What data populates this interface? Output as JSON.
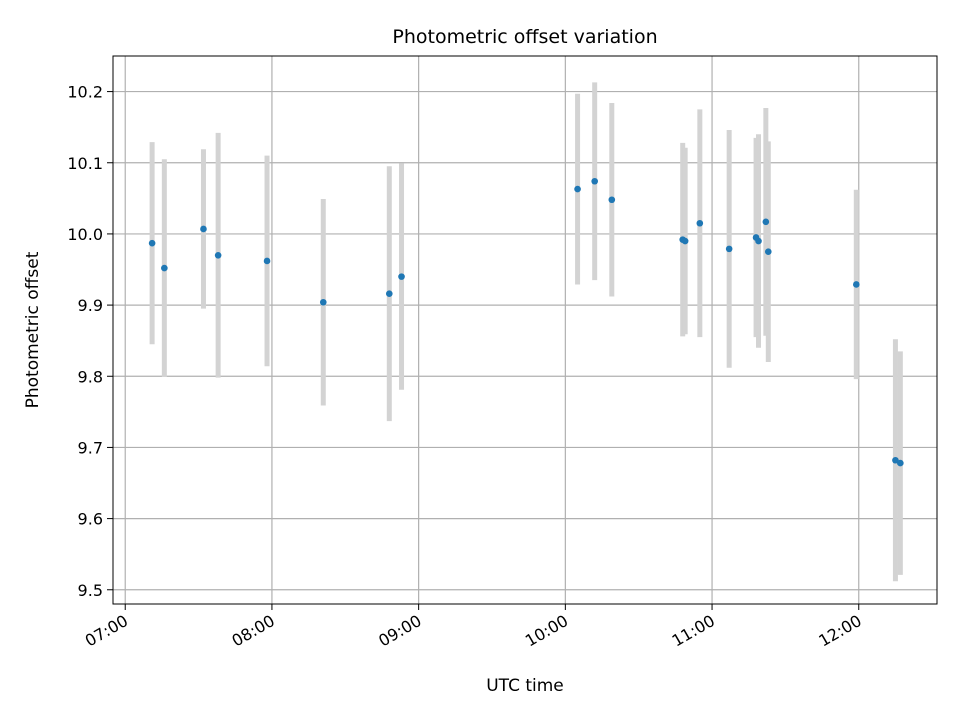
{
  "chart_data": {
    "type": "scatter",
    "title": "Photometric offset variation",
    "xlabel": "UTC time",
    "ylabel": "Photometric offset",
    "xlim": [
      "06:55",
      "12:32"
    ],
    "ylim": [
      9.48,
      10.25
    ],
    "x_ticks": [
      "07:00",
      "08:00",
      "09:00",
      "10:00",
      "11:00",
      "12:00"
    ],
    "y_ticks": [
      "9.5",
      "9.6",
      "9.7",
      "9.8",
      "9.9",
      "10.0",
      "10.1",
      "10.2"
    ],
    "grid": true,
    "colors": {
      "points": "#1f77b4",
      "errorbars": "#d3d3d3",
      "grid": "#b0b0b0"
    },
    "series": [
      {
        "points": [
          {
            "x": "07:11",
            "y": 9.987,
            "yerr": 0.142
          },
          {
            "x": "07:16",
            "y": 9.952,
            "yerr": 0.153
          },
          {
            "x": "07:32",
            "y": 10.007,
            "yerr": 0.112
          },
          {
            "x": "07:38",
            "y": 9.97,
            "yerr": 0.172
          },
          {
            "x": "07:58",
            "y": 9.962,
            "yerr": 0.148
          },
          {
            "x": "08:21",
            "y": 9.904,
            "yerr": 0.145
          },
          {
            "x": "08:48",
            "y": 9.916,
            "yerr": 0.179
          },
          {
            "x": "08:53",
            "y": 9.94,
            "yerr": 0.159
          },
          {
            "x": "10:05",
            "y": 10.063,
            "yerr": 0.134
          },
          {
            "x": "10:12",
            "y": 10.074,
            "yerr": 0.139
          },
          {
            "x": "10:19",
            "y": 10.048,
            "yerr": 0.136
          },
          {
            "x": "10:48",
            "y": 9.992,
            "yerr": 0.136
          },
          {
            "x": "10:49",
            "y": 9.99,
            "yerr": 0.131
          },
          {
            "x": "10:55",
            "y": 10.015,
            "yerr": 0.16
          },
          {
            "x": "11:07",
            "y": 9.979,
            "yerr": 0.167
          },
          {
            "x": "11:18",
            "y": 9.995,
            "yerr": 0.14
          },
          {
            "x": "11:19",
            "y": 9.99,
            "yerr": 0.15
          },
          {
            "x": "11:22",
            "y": 10.017,
            "yerr": 0.16
          },
          {
            "x": "11:23",
            "y": 9.975,
            "yerr": 0.155
          },
          {
            "x": "11:59",
            "y": 9.929,
            "yerr": 0.133
          },
          {
            "x": "12:15",
            "y": 9.682,
            "yerr": 0.17
          },
          {
            "x": "12:17",
            "y": 9.678,
            "yerr": 0.157
          }
        ]
      }
    ]
  }
}
